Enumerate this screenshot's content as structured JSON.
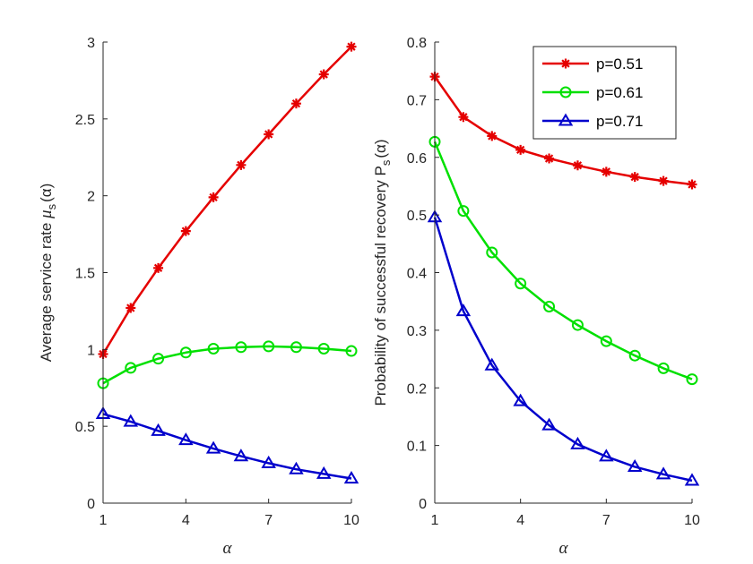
{
  "chart_data": [
    {
      "type": "line",
      "title": "",
      "xlabel": "α",
      "ylabel": {
        "text": "Average service rate ",
        "symbol": "μ",
        "subscript": "s",
        "arg": "(α)"
      },
      "xlim": [
        1,
        10
      ],
      "ylim": [
        0,
        3
      ],
      "xticks": [
        "1",
        "4",
        "7",
        "10"
      ],
      "yticks": [
        "0",
        "0.5",
        "1",
        "1.5",
        "2",
        "2.5",
        "3"
      ],
      "x": [
        1,
        2,
        3,
        4,
        5,
        6,
        7,
        8,
        9,
        10
      ],
      "grid": false,
      "series": [
        {
          "key": "p051",
          "color": "#e50000",
          "marker": "asterisk",
          "values": [
            0.97,
            1.27,
            1.53,
            1.77,
            1.99,
            2.2,
            2.4,
            2.6,
            2.79,
            2.97
          ]
        },
        {
          "key": "p061",
          "color": "#00e000",
          "marker": "circle",
          "values": [
            0.78,
            0.88,
            0.94,
            0.98,
            1.005,
            1.015,
            1.02,
            1.015,
            1.005,
            0.99
          ]
        },
        {
          "key": "p071",
          "color": "#0000cc",
          "marker": "triangle",
          "values": [
            0.58,
            0.53,
            0.47,
            0.41,
            0.355,
            0.305,
            0.26,
            0.22,
            0.19,
            0.16
          ]
        }
      ]
    },
    {
      "type": "line",
      "title": "",
      "xlabel": "α",
      "ylabel": {
        "text": "Probability of successful recovery P",
        "subscript": "s",
        "arg": "(α)"
      },
      "xlim": [
        1,
        10
      ],
      "ylim": [
        0,
        0.8
      ],
      "xticks": [
        "1",
        "4",
        "7",
        "10"
      ],
      "yticks": [
        "0",
        "0.1",
        "0.2",
        "0.3",
        "0.4",
        "0.5",
        "0.6",
        "0.7",
        "0.8"
      ],
      "x": [
        1,
        2,
        3,
        4,
        5,
        6,
        7,
        8,
        9,
        10
      ],
      "grid": false,
      "legend": {
        "placement": "top-right"
      },
      "series": [
        {
          "key": "p051",
          "name": "p=0.51",
          "color": "#e50000",
          "marker": "asterisk",
          "values": [
            0.74,
            0.67,
            0.637,
            0.613,
            0.598,
            0.586,
            0.575,
            0.566,
            0.559,
            0.553
          ]
        },
        {
          "key": "p061",
          "name": "p=0.61",
          "color": "#00e000",
          "marker": "circle",
          "values": [
            0.627,
            0.507,
            0.435,
            0.381,
            0.341,
            0.309,
            0.281,
            0.256,
            0.234,
            0.215
          ]
        },
        {
          "key": "p071",
          "name": "p=0.71",
          "color": "#0000cc",
          "marker": "triangle",
          "values": [
            0.496,
            0.333,
            0.239,
            0.177,
            0.135,
            0.102,
            0.081,
            0.063,
            0.05,
            0.039
          ]
        }
      ]
    }
  ]
}
